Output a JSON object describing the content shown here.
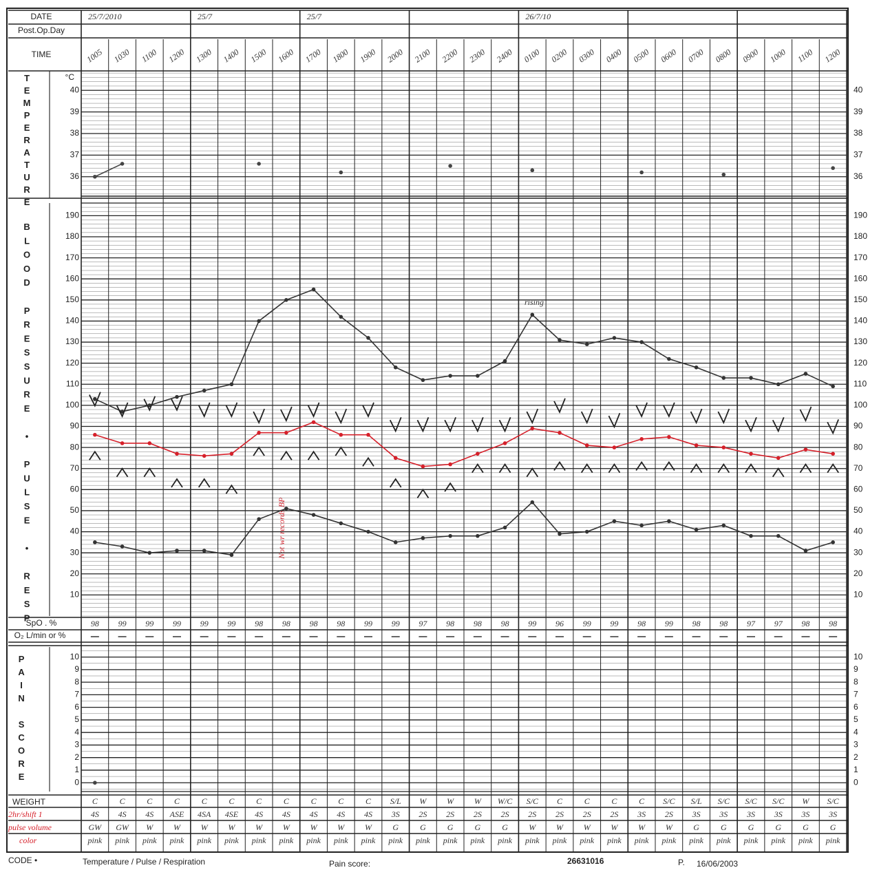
{
  "header": {
    "date_label": "DATE",
    "post_op_label": "Post.Op.Day",
    "time_label": "TIME",
    "dates": [
      "25/7/2010",
      "25/7",
      "25/7",
      null,
      "26/7/10",
      null,
      null
    ]
  },
  "side_labels": {
    "temperature": "TEMPERATURE",
    "temperature_unit": "°C",
    "vitals": "BLOOD PRESSURE • PULSE • RESP",
    "pain": "PAIN SCORE"
  },
  "chart_data": {
    "type": "line",
    "categories": [
      "1005",
      "1030",
      "1100",
      "1200",
      "1300",
      "1400",
      "1500",
      "1600",
      "1700",
      "1800",
      "1900",
      "2000",
      "2100",
      "2200",
      "2300",
      "2400",
      "0100",
      "0200",
      "0300",
      "0400",
      "0500",
      "0600",
      "0700",
      "0800",
      "0900",
      "1000",
      "1100",
      "1200"
    ],
    "ylim": [
      0,
      196
    ],
    "yticks": [
      10,
      20,
      30,
      40,
      50,
      60,
      70,
      80,
      90,
      100,
      110,
      120,
      130,
      140,
      150,
      160,
      170,
      180,
      190
    ],
    "y2lim": [
      35.1,
      40.9
    ],
    "y2ticks": [
      36,
      37,
      38,
      39,
      40
    ],
    "y3lim": [
      -0.7,
      10.8
    ],
    "y3ticks": [
      0,
      1,
      2,
      3,
      4,
      5,
      6,
      7,
      8,
      9,
      10
    ],
    "series": [
      {
        "color": "#333333",
        "marker": "dot",
        "values": [
          103,
          97,
          100,
          104,
          107,
          110,
          140,
          150,
          155,
          142,
          132,
          118,
          112,
          114,
          114,
          121,
          143,
          131,
          129,
          132,
          130,
          122,
          118,
          113,
          113,
          110,
          115,
          109
        ]
      },
      {
        "color": "#d6202a",
        "marker": "dot",
        "values": [
          86,
          82,
          82,
          77,
          76,
          77,
          87,
          87,
          92,
          86,
          86,
          75,
          71,
          72,
          77,
          82,
          89,
          87,
          81,
          80,
          84,
          85,
          81,
          80,
          77,
          75,
          79,
          77
        ]
      },
      {
        "color": "#333333",
        "marker": "dot",
        "values": [
          35,
          33,
          30,
          31,
          31,
          29,
          46,
          51,
          48,
          44,
          40,
          35,
          37,
          38,
          38,
          42,
          54,
          39,
          40,
          45,
          43,
          45,
          41,
          43,
          38,
          38,
          31,
          35
        ]
      },
      {
        "color": "#222222",
        "marker": "v",
        "values": [
          105,
          100,
          103,
          103,
          100,
          100,
          97,
          98,
          100,
          97,
          100,
          93,
          93,
          93,
          93,
          93,
          97,
          102,
          97,
          95,
          100,
          100,
          97,
          97,
          93,
          93,
          98,
          92
        ]
      },
      {
        "color": "#222222",
        "marker": "^",
        "values": [
          78,
          70,
          70,
          65,
          65,
          62,
          80,
          78,
          78,
          80,
          75,
          65,
          60,
          63,
          72,
          72,
          70,
          73,
          72,
          72,
          73,
          73,
          72,
          72,
          72,
          70,
          72,
          72
        ]
      },
      {
        "color": "#444444",
        "marker": "dot",
        "axis": "y2",
        "values": [
          36.0,
          36.6,
          null,
          null,
          null,
          null,
          36.6,
          null,
          null,
          36.2,
          null,
          null,
          null,
          36.5,
          null,
          null,
          36.3,
          null,
          null,
          null,
          36.2,
          null,
          null,
          36.1,
          null,
          null,
          null,
          36.4
        ]
      },
      {
        "color": "#444444",
        "marker": "dot",
        "axis": "y3",
        "values": [
          0,
          null,
          null,
          null,
          null,
          null,
          null,
          null,
          null,
          null,
          null,
          null,
          null,
          null,
          null,
          null,
          null,
          null,
          null,
          null,
          null,
          null,
          null,
          null,
          null,
          null,
          null,
          null
        ]
      }
    ],
    "annotations": [
      "rising",
      "Not wr records BP"
    ]
  },
  "spo2": {
    "label": "SpO . %",
    "o2_label": "O₂ L/min or %",
    "values": [
      "98",
      "99",
      "99",
      "99",
      "99",
      "99",
      "98",
      "98",
      "98",
      "98",
      "99",
      "99",
      "97",
      "98",
      "98",
      "98",
      "99",
      "96",
      "99",
      "99",
      "98",
      "99",
      "98",
      "98",
      "97",
      "97",
      "98",
      "98"
    ]
  },
  "observations": {
    "label": "WEIGHT",
    "notes": [
      "2hr/shift 1",
      "pulse volume",
      "color"
    ],
    "rows": [
      [
        "C",
        "C",
        "C",
        "C",
        "C",
        "C",
        "C",
        "C",
        "C",
        "C",
        "C",
        "S/L",
        "W",
        "W",
        "W",
        "W/C",
        "S/C",
        "C",
        "C",
        "C",
        "C",
        "S/C",
        "S/L",
        "S/C",
        "S/C",
        "S/C",
        "W",
        "S/C"
      ],
      [
        "4S",
        "4S",
        "4S",
        "ASE",
        "4SA",
        "4SE",
        "4S",
        "4S",
        "4S",
        "4S",
        "4S",
        "3S",
        "2S",
        "2S",
        "2S",
        "2S",
        "2S",
        "2S",
        "2S",
        "2S",
        "3S",
        "2S",
        "3S",
        "3S",
        "3S",
        "3S",
        "3S",
        "3S"
      ],
      [
        "GW",
        "GW",
        "W",
        "W",
        "W",
        "W",
        "W",
        "W",
        "W",
        "W",
        "W",
        "G",
        "G",
        "G",
        "G",
        "G",
        "W",
        "W",
        "W",
        "W",
        "W",
        "W",
        "G",
        "G",
        "G",
        "G",
        "G",
        "G"
      ],
      [
        "pink",
        "pink",
        "pink",
        "pink",
        "pink",
        "pink",
        "pink",
        "pink",
        "pink",
        "pink",
        "pink",
        "pink",
        "pink",
        "pink",
        "pink",
        "pink",
        "pink",
        "pink",
        "pink",
        "pink",
        "pink",
        "pink",
        "pink",
        "pink",
        "pink",
        "pink",
        "pink",
        "pink"
      ]
    ]
  },
  "footer": {
    "code": "CODE •",
    "legend": "Temperature / Pulse / Respiration",
    "pain": "Pain score:",
    "id": "26631016",
    "p": "P.",
    "date": "16/06/2003"
  }
}
